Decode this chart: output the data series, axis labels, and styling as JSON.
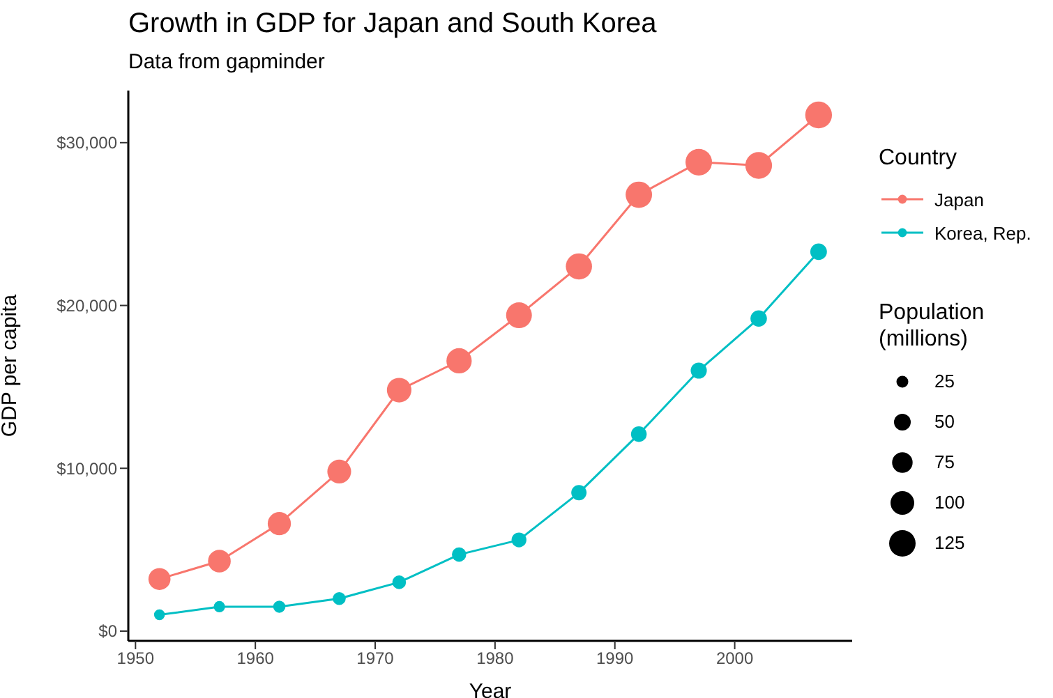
{
  "chart_data": {
    "type": "bubble",
    "title": "Growth in GDP for Japan and South Korea",
    "subtitle": "Data from gapminder",
    "xlabel": "Year",
    "ylabel": "GDP per capita",
    "legend_title": "Country",
    "annotations": [
      "Population (millions)"
    ],
    "x": [
      1952,
      1957,
      1962,
      1967,
      1972,
      1977,
      1982,
      1987,
      1992,
      1997,
      2002,
      2007
    ],
    "series": [
      {
        "type": "line",
        "marker": "none",
        "color": "#f8766d",
        "values": [
          3200,
          4300,
          6600,
          9800,
          14800,
          16600,
          19400,
          22400,
          26800,
          28800,
          28600,
          31700
        ]
      },
      {
        "type": "line",
        "marker": "none",
        "color": "#00bfc4",
        "values": [
          1000,
          1500,
          1500,
          2000,
          3000,
          4700,
          5600,
          8500,
          12100,
          16000,
          19200,
          23300
        ]
      },
      {
        "name": "Japan",
        "color": "#f8766d",
        "values": [
          3200,
          4300,
          6600,
          9800,
          14800,
          16600,
          19400,
          22400,
          26800,
          28800,
          28600,
          31700
        ],
        "sizes": [
          86.5,
          91.6,
          95.8,
          100.8,
          107.2,
          113.9,
          118.5,
          122.1,
          124.3,
          125.6,
          127.1,
          127.5
        ]
      },
      {
        "name": "Korea, Rep.",
        "color": "#00bfc4",
        "values": [
          1000,
          1500,
          1500,
          2000,
          3000,
          4700,
          5600,
          8500,
          12100,
          16000,
          19200,
          23300
        ],
        "sizes": [
          20.9,
          22.6,
          26.4,
          30.1,
          33.5,
          36.4,
          39.3,
          41.6,
          43.8,
          46.2,
          48.0,
          49.0
        ]
      }
    ],
    "size_legend": [
      25,
      50,
      75,
      100,
      125
    ],
    "xlim": [
      1949.4,
      2009.8
    ],
    "xticks": [
      1950,
      1960,
      1970,
      1980,
      1990,
      2000
    ],
    "ylim": [
      -600,
      33200
    ],
    "yticks": [
      {
        "value": 0,
        "label": "$0"
      },
      {
        "value": 10000,
        "label": "$10,000"
      },
      {
        "value": 20000,
        "label": "$20,000"
      },
      {
        "value": 30000,
        "label": "$30,000"
      }
    ],
    "legend": "right",
    "marker": "circle",
    "line_style": "solid"
  }
}
